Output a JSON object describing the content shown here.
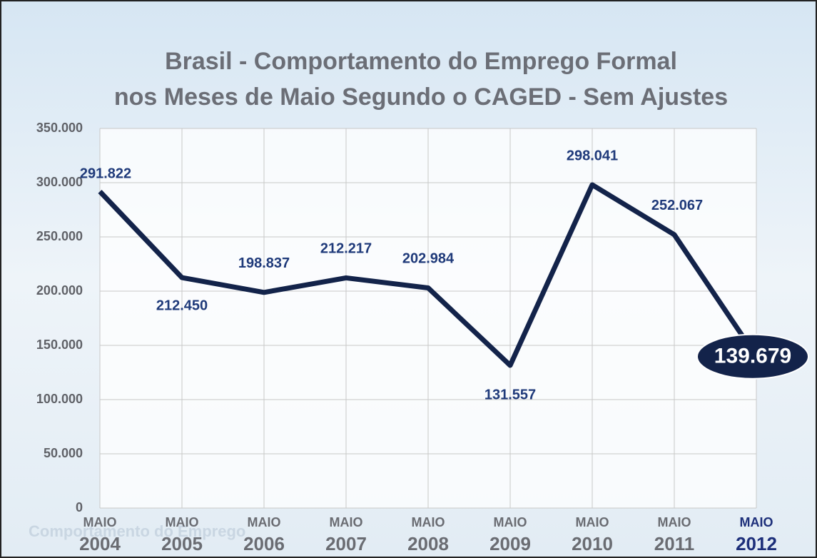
{
  "chart_data": {
    "type": "line",
    "title": [
      "Brasil - Comportamento do Emprego Formal",
      "nos Meses de Maio Segundo o CAGED - Sem Ajustes"
    ],
    "watermark": "Comportamento do Emprego",
    "categories": [
      [
        "MAIO",
        "2004"
      ],
      [
        "MAIO",
        "2005"
      ],
      [
        "MAIO",
        "2006"
      ],
      [
        "MAIO",
        "2007"
      ],
      [
        "MAIO",
        "2008"
      ],
      [
        "MAIO",
        "2009"
      ],
      [
        "MAIO",
        "2010"
      ],
      [
        "MAIO",
        "2011"
      ],
      [
        "MAIO",
        "2012"
      ]
    ],
    "values": [
      291822,
      212450,
      198837,
      212217,
      202984,
      131557,
      298041,
      252067,
      139679
    ],
    "value_labels": [
      "291.822",
      "212.450",
      "198.837",
      "212.217",
      "202.984",
      "131.557",
      "298.041",
      "252.067",
      "139.679"
    ],
    "color": "#13234a",
    "ylim": [
      0,
      350000
    ],
    "yticks": [
      0,
      {
        "value": 50000,
        "label": "50.000"
      },
      {
        "value": 100000,
        "label": "100.000"
      },
      {
        "value": 150000,
        "label": "150.000"
      },
      {
        "value": 200000,
        "label": "200.000"
      },
      {
        "value": 250000,
        "label": "250.000"
      },
      {
        "value": 300000,
        "label": "300.000"
      },
      {
        "value": 350000,
        "label": "350.000"
      }
    ],
    "grid": true
  }
}
